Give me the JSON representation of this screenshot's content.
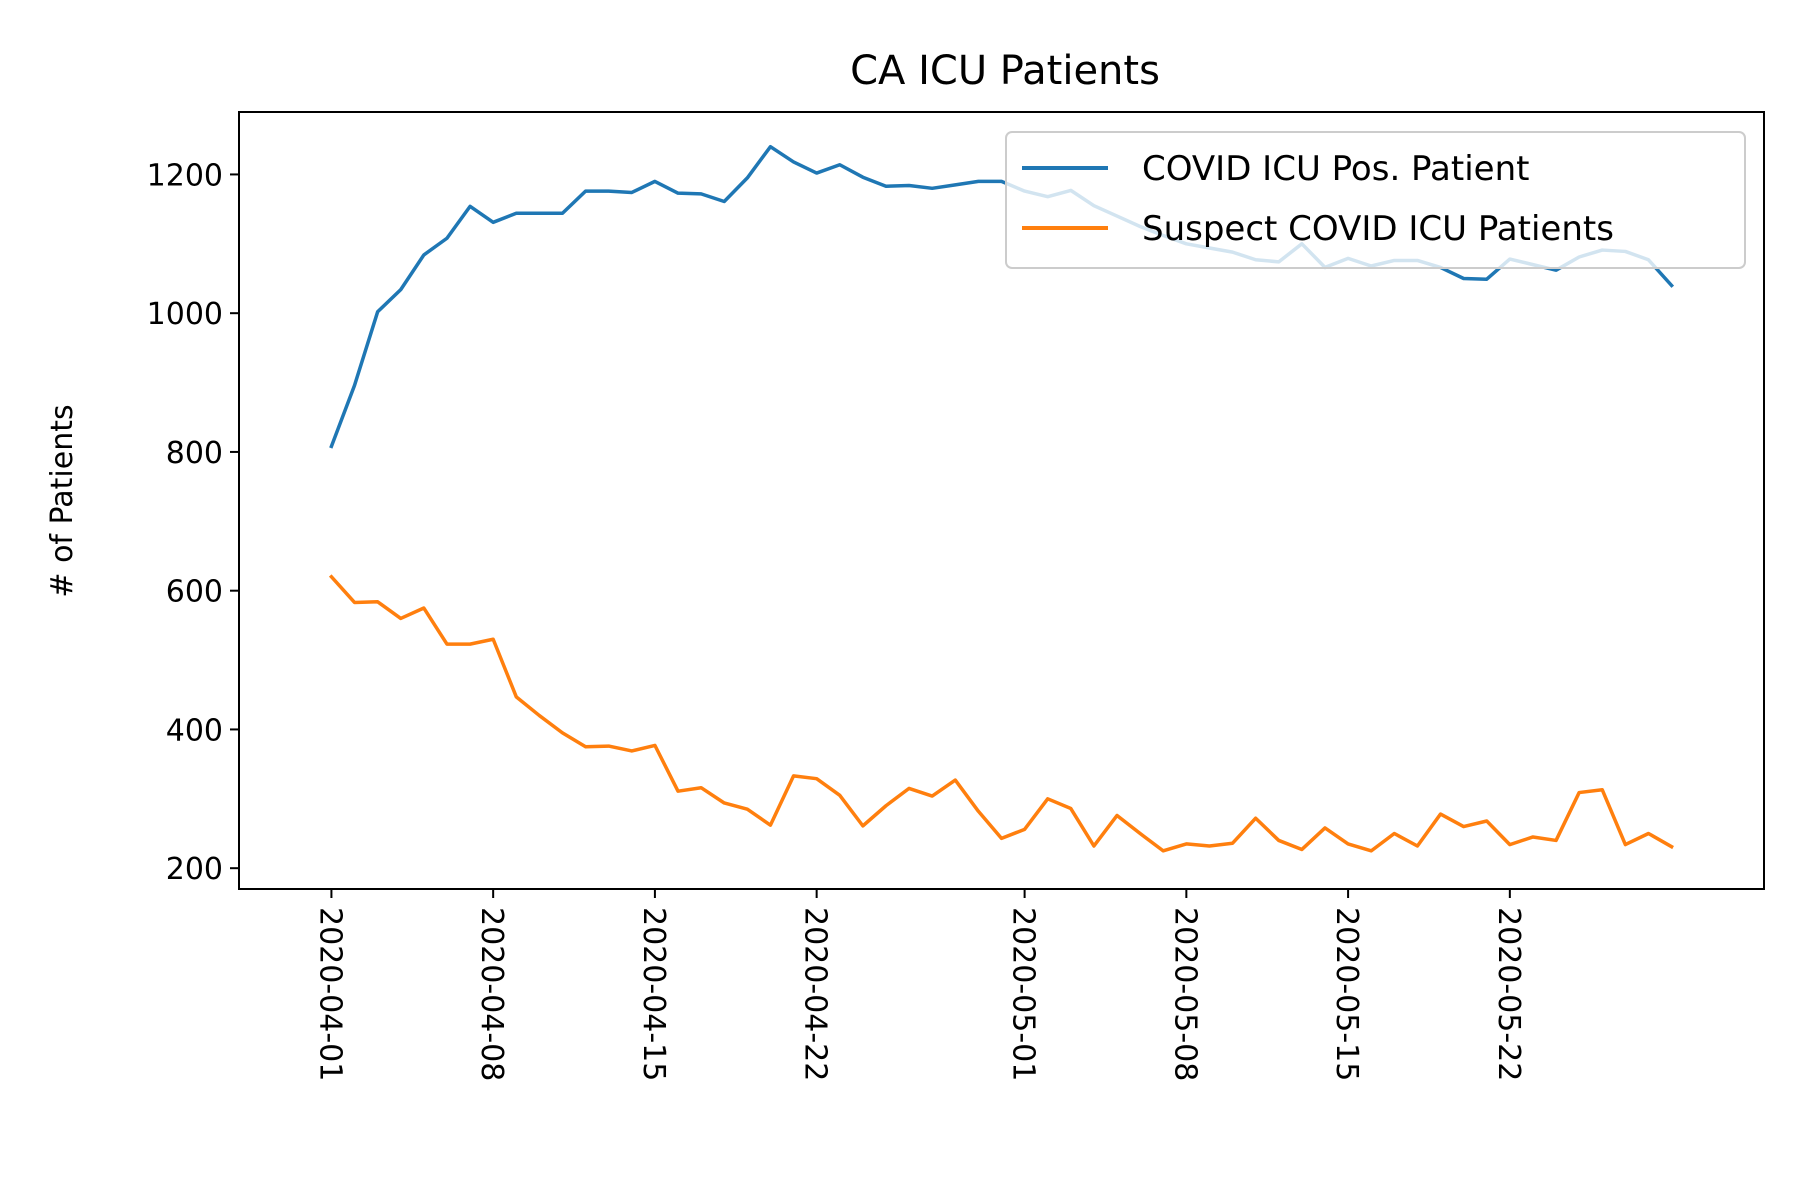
{
  "chart_data": {
    "type": "line",
    "title": "CA ICU Patients",
    "xlabel": "",
    "ylabel": "# of Patients",
    "x_type": "date",
    "x_start": "2020-04-01",
    "xlim": [
      "2020-03-28",
      "2020-06-02"
    ],
    "ylim": [
      170,
      1290
    ],
    "yticks": [
      200,
      400,
      600,
      800,
      1000,
      1200
    ],
    "xtick_labels": [
      "2020-04-01",
      "2020-04-08",
      "2020-04-15",
      "2020-04-22",
      "2020-05-01",
      "2020-05-08",
      "2020-05-15",
      "2020-05-22"
    ],
    "grid": false,
    "legend_position": "top-right",
    "series": [
      {
        "name": "COVID ICU Pos. Patient",
        "color": "#1f77b4",
        "values": [
          808,
          896,
          1002,
          1034,
          1084,
          1108,
          1154,
          1131,
          1144,
          1144,
          1144,
          1176,
          1176,
          1174,
          1190,
          1173,
          1172,
          1161,
          1195,
          1240,
          1218,
          1202,
          1214,
          1196,
          1183,
          1184,
          1180,
          1185,
          1190,
          1190,
          1176,
          1168,
          1177,
          1155,
          1140,
          1125,
          1112,
          1100,
          1094,
          1088,
          1077,
          1074,
          1100,
          1066,
          1079,
          1068,
          1076,
          1076,
          1066,
          1050,
          1049,
          1078,
          1070,
          1062,
          1081,
          1091,
          1089,
          1077,
          1040
        ]
      },
      {
        "name": "Suspect COVID ICU Patients",
        "color": "#ff7f0e",
        "values": [
          620,
          583,
          584,
          560,
          575,
          523,
          523,
          530,
          447,
          420,
          395,
          375,
          376,
          369,
          377,
          311,
          316,
          294,
          285,
          262,
          333,
          329,
          305,
          261,
          290,
          315,
          304,
          327,
          282,
          243,
          256,
          300,
          286,
          232,
          276,
          250,
          225,
          235,
          232,
          236,
          272,
          240,
          227,
          258,
          235,
          225,
          250,
          232,
          278,
          260,
          268,
          234,
          245,
          240,
          309,
          313,
          234,
          250,
          231
        ]
      }
    ]
  }
}
